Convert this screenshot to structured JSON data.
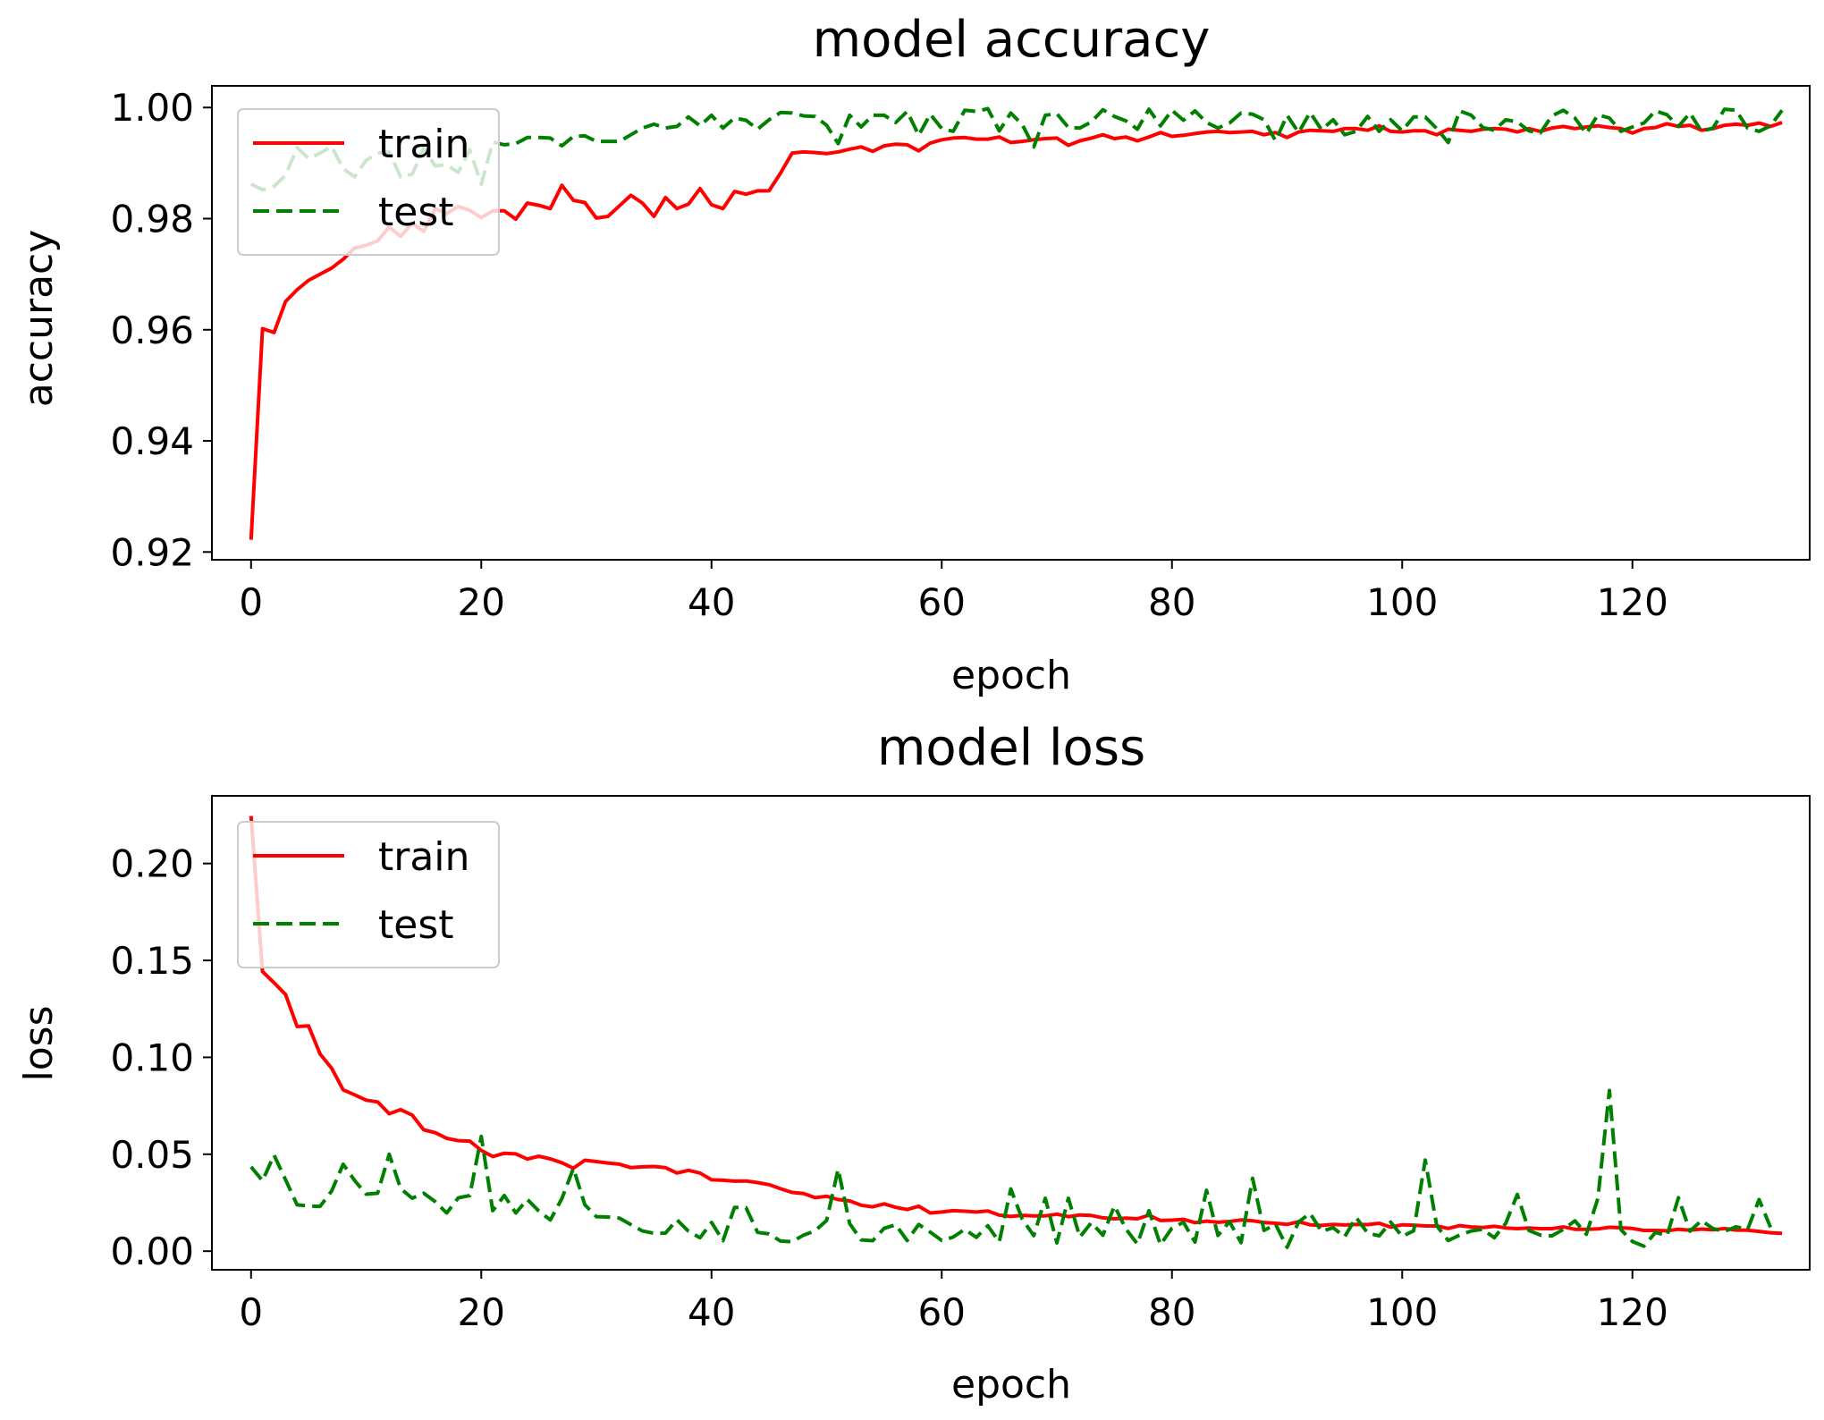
{
  "chart_data": [
    {
      "type": "line",
      "title": "model accuracy",
      "xlabel": "epoch",
      "ylabel": "accuracy",
      "xlim": [
        -3.4,
        135.4
      ],
      "ylim": [
        0.9186,
        1.0039
      ],
      "xticks": [
        0,
        20,
        40,
        60,
        80,
        100,
        120
      ],
      "xtick_labels": [
        "0",
        "20",
        "40",
        "60",
        "80",
        "100",
        "120"
      ],
      "yticks": [
        0.92,
        0.94,
        0.96,
        0.98,
        1.0
      ],
      "ytick_labels": [
        "0.92",
        "0.94",
        "0.96",
        "0.98",
        "1.00"
      ],
      "legend_position": "upper left",
      "series": [
        {
          "name": "train",
          "legend_label": "train",
          "color": "#ff0000",
          "style": "solid",
          "values": [
            0.9222,
            0.9602,
            0.9595,
            0.9651,
            0.9672,
            0.9689,
            0.97,
            0.9711,
            0.9727,
            0.9747,
            0.9752,
            0.976,
            0.9785,
            0.9768,
            0.9792,
            0.9777,
            0.9818,
            0.9809,
            0.9822,
            0.9815,
            0.9802,
            0.9814,
            0.9814,
            0.9799,
            0.9828,
            0.9824,
            0.9818,
            0.986,
            0.9833,
            0.9829,
            0.9801,
            0.9804,
            0.9823,
            0.9842,
            0.9828,
            0.9804,
            0.9838,
            0.9818,
            0.9826,
            0.9854,
            0.9825,
            0.9818,
            0.9849,
            0.9844,
            0.985,
            0.985,
            0.9882,
            0.9918,
            0.992,
            0.9919,
            0.9917,
            0.992,
            0.9925,
            0.9929,
            0.9921,
            0.9931,
            0.9934,
            0.9933,
            0.9922,
            0.9936,
            0.9942,
            0.9945,
            0.9946,
            0.9943,
            0.9943,
            0.9947,
            0.9937,
            0.9939,
            0.9942,
            0.9944,
            0.9945,
            0.9932,
            0.994,
            0.9945,
            0.9951,
            0.9944,
            0.9947,
            0.994,
            0.9947,
            0.9955,
            0.9948,
            0.995,
            0.9953,
            0.9956,
            0.9957,
            0.9955,
            0.9956,
            0.9957,
            0.9951,
            0.9955,
            0.9946,
            0.9956,
            0.9959,
            0.9958,
            0.9957,
            0.9962,
            0.9962,
            0.9959,
            0.9967,
            0.9957,
            0.9956,
            0.9958,
            0.9958,
            0.9951,
            0.9961,
            0.9959,
            0.9957,
            0.9961,
            0.9962,
            0.9961,
            0.9956,
            0.9962,
            0.9957,
            0.9963,
            0.9966,
            0.9962,
            0.9965,
            0.9967,
            0.9964,
            0.9962,
            0.9954,
            0.9962,
            0.9964,
            0.9971,
            0.9966,
            0.9968,
            0.9959,
            0.9962,
            0.9968,
            0.997,
            0.9968,
            0.9972,
            0.9966,
            0.9973
          ]
        },
        {
          "name": "test",
          "legend_label": "test",
          "color": "#008000",
          "style": "dashed",
          "values": [
            0.9862,
            0.9852,
            0.9858,
            0.9878,
            0.9928,
            0.9908,
            0.9918,
            0.993,
            0.989,
            0.9875,
            0.9905,
            0.9918,
            0.992,
            0.9875,
            0.988,
            0.9927,
            0.9895,
            0.9897,
            0.9883,
            0.9924,
            0.9862,
            0.9938,
            0.9933,
            0.9935,
            0.9946,
            0.9946,
            0.9945,
            0.9931,
            0.9948,
            0.9949,
            0.9939,
            0.9939,
            0.9939,
            0.9951,
            0.9963,
            0.997,
            0.9963,
            0.9966,
            0.9983,
            0.9967,
            0.9986,
            0.9963,
            0.9981,
            0.9977,
            0.9961,
            0.9978,
            0.9991,
            0.999,
            0.9985,
            0.9984,
            0.9968,
            0.9935,
            0.9986,
            0.9965,
            0.9986,
            0.9986,
            0.9973,
            0.9993,
            0.995,
            0.9988,
            0.9962,
            0.9957,
            0.9995,
            0.9993,
            0.9998,
            0.9958,
            0.999,
            0.9969,
            0.9929,
            0.9986,
            0.9989,
            0.9964,
            0.9963,
            0.9974,
            0.9996,
            0.9984,
            0.9976,
            0.9961,
            0.9997,
            0.9967,
            0.9995,
            0.9977,
            0.9994,
            0.9973,
            0.9963,
            0.9972,
            0.999,
            0.9988,
            0.9978,
            0.994,
            0.9986,
            0.9955,
            0.9991,
            0.996,
            0.9978,
            0.9951,
            0.9957,
            0.9984,
            0.9957,
            0.9978,
            0.9958,
            0.9983,
            0.9983,
            0.9962,
            0.9937,
            0.9994,
            0.9986,
            0.9964,
            0.9959,
            0.9978,
            0.9974,
            0.9958,
            0.9954,
            0.9985,
            0.9995,
            0.9981,
            0.9953,
            0.9987,
            0.9981,
            0.9957,
            0.9965,
            0.9972,
            0.9994,
            0.9987,
            0.9966,
            0.999,
            0.9957,
            0.9963,
            0.9997,
            0.9995,
            0.9963,
            0.9957,
            0.9967,
            0.9995
          ]
        }
      ]
    },
    {
      "type": "line",
      "title": "model loss",
      "xlabel": "epoch",
      "ylabel": "loss",
      "xlim": [
        -3.4,
        135.4
      ],
      "ylim": [
        -0.0096,
        0.2349
      ],
      "xticks": [
        0,
        20,
        40,
        60,
        80,
        100,
        120
      ],
      "xtick_labels": [
        "0",
        "20",
        "40",
        "60",
        "80",
        "100",
        "120"
      ],
      "yticks": [
        0.0,
        0.05,
        0.1,
        0.15,
        0.2
      ],
      "ytick_labels": [
        "0.00",
        "0.05",
        "0.10",
        "0.15",
        "0.20"
      ],
      "legend_position": "upper left",
      "series": [
        {
          "name": "train",
          "legend_label": "train",
          "color": "#ff0000",
          "style": "solid",
          "values": [
            0.2245,
            0.1442,
            0.1385,
            0.1324,
            0.1159,
            0.1162,
            0.1017,
            0.0944,
            0.0832,
            0.0807,
            0.0779,
            0.077,
            0.0709,
            0.073,
            0.0702,
            0.0626,
            0.0611,
            0.0582,
            0.057,
            0.0568,
            0.052,
            0.0488,
            0.0505,
            0.0502,
            0.0475,
            0.049,
            0.0476,
            0.0456,
            0.0428,
            0.0469,
            0.0462,
            0.0455,
            0.0449,
            0.0431,
            0.0435,
            0.0437,
            0.0431,
            0.0403,
            0.0417,
            0.0403,
            0.0368,
            0.0366,
            0.0361,
            0.0362,
            0.0354,
            0.0343,
            0.0322,
            0.0303,
            0.0297,
            0.0276,
            0.0283,
            0.0266,
            0.0259,
            0.0237,
            0.0229,
            0.0244,
            0.0226,
            0.0215,
            0.0232,
            0.0197,
            0.0202,
            0.0209,
            0.0206,
            0.0202,
            0.0207,
            0.0186,
            0.0179,
            0.0185,
            0.0182,
            0.0182,
            0.0191,
            0.0178,
            0.0187,
            0.0184,
            0.0172,
            0.0167,
            0.017,
            0.0167,
            0.0186,
            0.0158,
            0.016,
            0.0164,
            0.0147,
            0.0155,
            0.0149,
            0.0153,
            0.0161,
            0.0157,
            0.0148,
            0.0144,
            0.0138,
            0.0152,
            0.0136,
            0.0133,
            0.0138,
            0.0135,
            0.0138,
            0.0137,
            0.0144,
            0.0124,
            0.0136,
            0.0134,
            0.013,
            0.013,
            0.0117,
            0.0132,
            0.0125,
            0.0122,
            0.0128,
            0.012,
            0.0116,
            0.012,
            0.0116,
            0.0116,
            0.0125,
            0.0113,
            0.0113,
            0.0115,
            0.0123,
            0.0121,
            0.0117,
            0.0107,
            0.0107,
            0.0105,
            0.0113,
            0.0108,
            0.0114,
            0.011,
            0.0117,
            0.0109,
            0.0108,
            0.0102,
            0.0095,
            0.0092
          ]
        },
        {
          "name": "test",
          "legend_label": "test",
          "color": "#008000",
          "style": "dashed",
          "values": [
            0.0435,
            0.0363,
            0.0496,
            0.0368,
            0.0239,
            0.0233,
            0.0231,
            0.031,
            0.0449,
            0.0365,
            0.0294,
            0.0299,
            0.05,
            0.0323,
            0.0273,
            0.0299,
            0.0255,
            0.0197,
            0.0275,
            0.0287,
            0.0592,
            0.0209,
            0.0287,
            0.0197,
            0.0267,
            0.0207,
            0.0161,
            0.0271,
            0.0427,
            0.024,
            0.0178,
            0.0176,
            0.017,
            0.0137,
            0.0104,
            0.0092,
            0.0093,
            0.0162,
            0.0103,
            0.0069,
            0.0148,
            0.0054,
            0.0226,
            0.0224,
            0.0097,
            0.0089,
            0.0052,
            0.0049,
            0.0083,
            0.0105,
            0.0158,
            0.0423,
            0.0142,
            0.0058,
            0.0054,
            0.0118,
            0.0136,
            0.0055,
            0.0138,
            0.0098,
            0.0055,
            0.0073,
            0.0113,
            0.0071,
            0.0131,
            0.0048,
            0.0321,
            0.0164,
            0.008,
            0.0273,
            0.0043,
            0.0273,
            0.0073,
            0.0147,
            0.0082,
            0.0234,
            0.0115,
            0.0037,
            0.0209,
            0.0033,
            0.0119,
            0.0149,
            0.0047,
            0.0314,
            0.0081,
            0.0152,
            0.0044,
            0.0376,
            0.0107,
            0.0139,
            0.002,
            0.0151,
            0.0195,
            0.0102,
            0.0121,
            0.0074,
            0.0174,
            0.0093,
            0.0079,
            0.015,
            0.0076,
            0.0105,
            0.047,
            0.0131,
            0.0055,
            0.0083,
            0.0104,
            0.0113,
            0.0069,
            0.0144,
            0.0293,
            0.0107,
            0.0083,
            0.0079,
            0.0112,
            0.0157,
            0.0087,
            0.0272,
            0.0829,
            0.0111,
            0.005,
            0.0026,
            0.0097,
            0.008,
            0.0276,
            0.0103,
            0.0158,
            0.0116,
            0.0102,
            0.0126,
            0.0112,
            0.0266,
            0.0123
          ]
        }
      ]
    }
  ]
}
